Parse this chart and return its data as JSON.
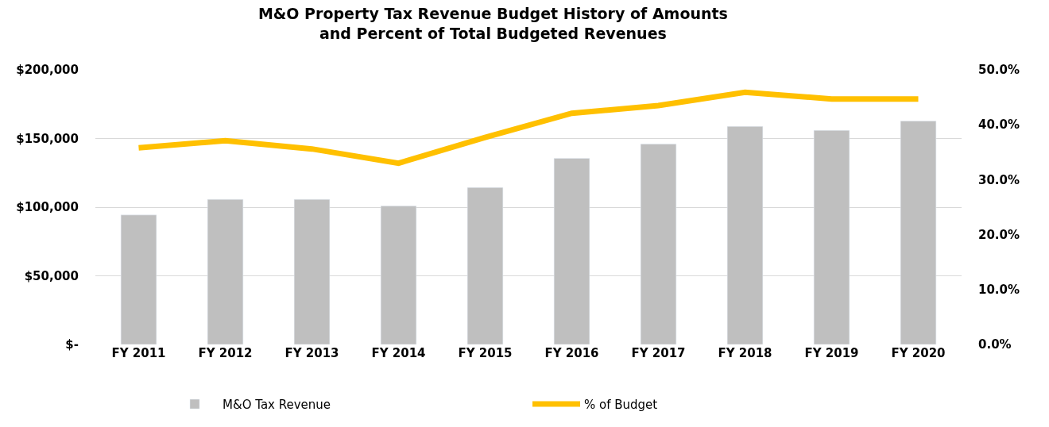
{
  "chart_data": {
    "type": "bar",
    "title": "M&O Property Tax Revenue Budget History of Amounts\nand Percent of Total Budgeted Revenues",
    "categories": [
      "FY 2011",
      "FY 2012",
      "FY 2013",
      "FY 2014",
      "FY 2015",
      "FY 2016",
      "FY 2017",
      "FY 2018",
      "FY 2019",
      "FY 2020"
    ],
    "series": [
      {
        "name": "M&O Tax Revenue",
        "color": "#bfbfbf",
        "values": [
          94300,
          105700,
          105700,
          100800,
          114300,
          135500,
          146000,
          158800,
          155900,
          162700
        ]
      },
      {
        "name": "% of Budget",
        "type": "line",
        "axis": "y2",
        "color": "#ffc000",
        "values": [
          35.8,
          37.1,
          35.6,
          33.0,
          37.7,
          42.1,
          43.5,
          45.9,
          44.7,
          44.7
        ]
      }
    ],
    "ylim": [
      0,
      200000
    ],
    "yticks": [
      {
        "value": 0,
        "label": "$-"
      },
      {
        "value": 50000,
        "label": "$50,000"
      },
      {
        "value": 100000,
        "label": "$100,000"
      },
      {
        "value": 150000,
        "label": "$150,000"
      },
      {
        "value": 200000,
        "label": "$200,000"
      }
    ],
    "y2lim": [
      0,
      50
    ],
    "y2ticks": [
      {
        "value": 0,
        "label": "0.0%"
      },
      {
        "value": 10,
        "label": "10.0%"
      },
      {
        "value": 20,
        "label": "20.0%"
      },
      {
        "value": 30,
        "label": "30.0%"
      },
      {
        "value": 40,
        "label": "40.0%"
      },
      {
        "value": 50,
        "label": "50.0%"
      }
    ],
    "grid": "y",
    "legend": "bottom",
    "marker": "none",
    "line_style": "solid"
  }
}
